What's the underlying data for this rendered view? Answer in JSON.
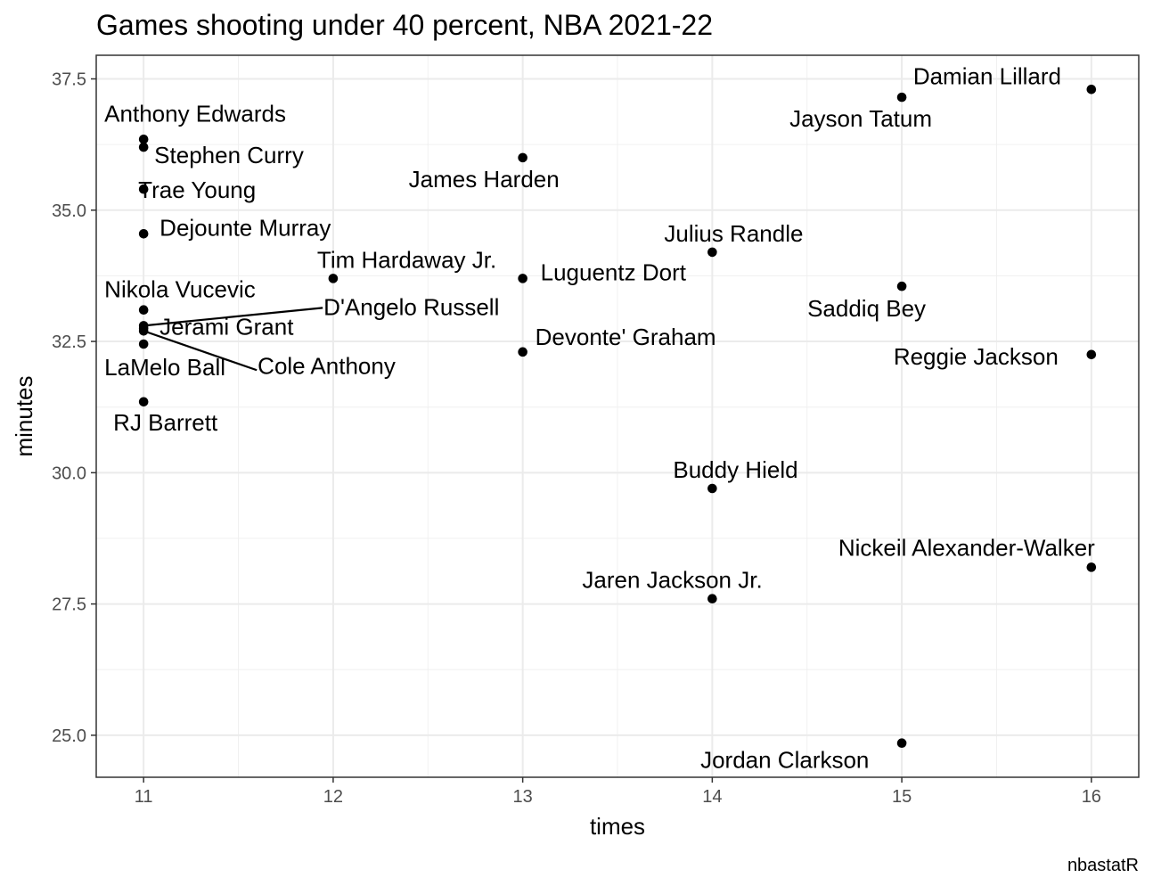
{
  "chart_data": {
    "type": "scatter",
    "title": "Games shooting under 40 percent, NBA 2021-22",
    "xlabel": "times",
    "ylabel": "minutes",
    "caption": "nbastatR",
    "xlim": [
      10.75,
      16.25
    ],
    "ylim": [
      24.2,
      37.95
    ],
    "x_ticks": [
      11,
      12,
      13,
      14,
      15,
      16
    ],
    "x_tick_labels": [
      "11",
      "12",
      "13",
      "14",
      "15",
      "16"
    ],
    "y_ticks": [
      25,
      27.5,
      30,
      32.5,
      35,
      37.5
    ],
    "y_tick_labels": [
      "25.0",
      "27.5",
      "30.0",
      "32.5",
      "35.0",
      "37.5"
    ],
    "grid": true,
    "points": [
      {
        "name": "Anthony Edwards",
        "x": 11,
        "y": 36.35
      },
      {
        "name": "Stephen Curry",
        "x": 11,
        "y": 36.2
      },
      {
        "name": "Trae Young",
        "x": 11,
        "y": 35.4
      },
      {
        "name": "Dejounte Murray",
        "x": 11,
        "y": 34.55
      },
      {
        "name": "Nikola Vucevic",
        "x": 11,
        "y": 33.1
      },
      {
        "name": "D'Angelo Russell",
        "x": 11,
        "y": 32.8
      },
      {
        "name": "Jerami Grant",
        "x": 11,
        "y": 32.75
      },
      {
        "name": "Cole Anthony",
        "x": 11,
        "y": 32.7
      },
      {
        "name": "LaMelo Ball",
        "x": 11,
        "y": 32.45
      },
      {
        "name": "RJ Barrett",
        "x": 11,
        "y": 31.35
      },
      {
        "name": "Tim Hardaway Jr.",
        "x": 12,
        "y": 33.7
      },
      {
        "name": "James Harden",
        "x": 13,
        "y": 36.0
      },
      {
        "name": "Luguentz Dort",
        "x": 13,
        "y": 33.7
      },
      {
        "name": "Devonte' Graham",
        "x": 13,
        "y": 32.3
      },
      {
        "name": "Julius Randle",
        "x": 14,
        "y": 34.2
      },
      {
        "name": "Buddy Hield",
        "x": 14,
        "y": 29.7
      },
      {
        "name": "Jaren Jackson Jr.",
        "x": 14,
        "y": 27.6
      },
      {
        "name": "Jayson Tatum",
        "x": 15,
        "y": 37.15
      },
      {
        "name": "Saddiq Bey",
        "x": 15,
        "y": 33.55
      },
      {
        "name": "Jordan Clarkson",
        "x": 15,
        "y": 24.85
      },
      {
        "name": "Damian Lillard",
        "x": 16,
        "y": 37.3
      },
      {
        "name": "Reggie Jackson",
        "x": 16,
        "y": 32.25
      },
      {
        "name": "Nickeil Alexander-Walker",
        "x": 16,
        "y": 28.2
      }
    ]
  }
}
